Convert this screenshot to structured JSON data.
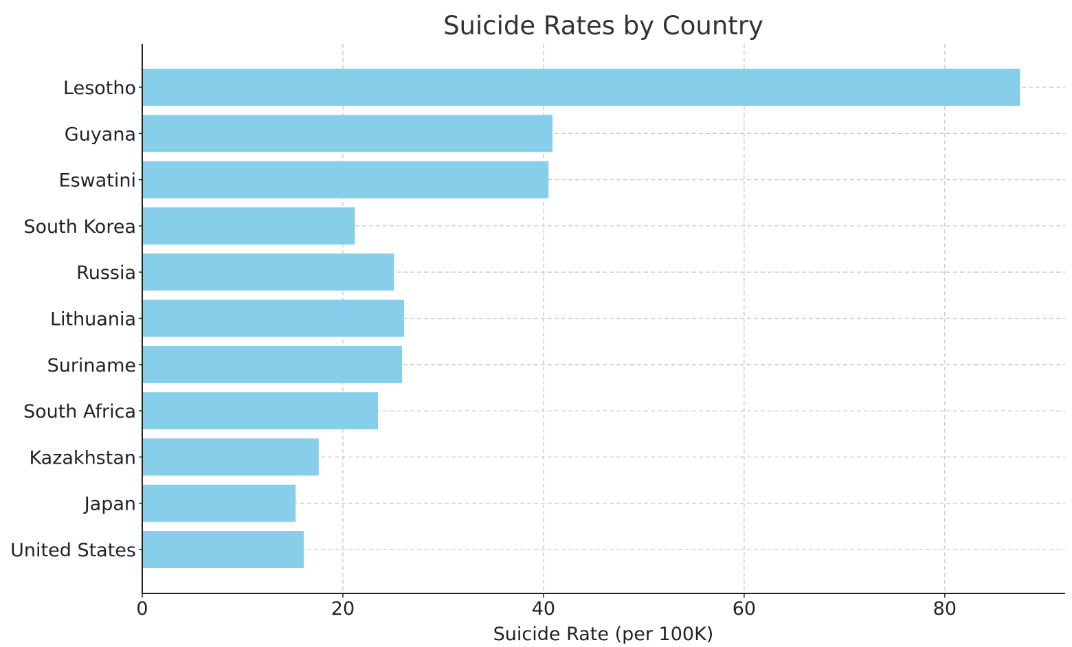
{
  "chart_data": {
    "type": "bar",
    "orientation": "horizontal",
    "title": "Suicide Rates by Country",
    "xlabel": "Suicide Rate (per 100K)",
    "ylabel": "",
    "categories": [
      "Lesotho",
      "Guyana",
      "Eswatini",
      "South Korea",
      "Russia",
      "Lithuania",
      "Suriname",
      "South Africa",
      "Kazakhstan",
      "Japan",
      "United States"
    ],
    "values": [
      87.5,
      40.9,
      40.5,
      21.2,
      25.1,
      26.1,
      25.9,
      23.5,
      17.6,
      15.3,
      16.1
    ],
    "xlim": [
      0,
      92
    ],
    "xticks": [
      0,
      20,
      40,
      60,
      80
    ],
    "xtick_labels": [
      "0",
      "20",
      "40",
      "60",
      "80"
    ],
    "grid": true,
    "bar_color": "#87ceeb"
  }
}
